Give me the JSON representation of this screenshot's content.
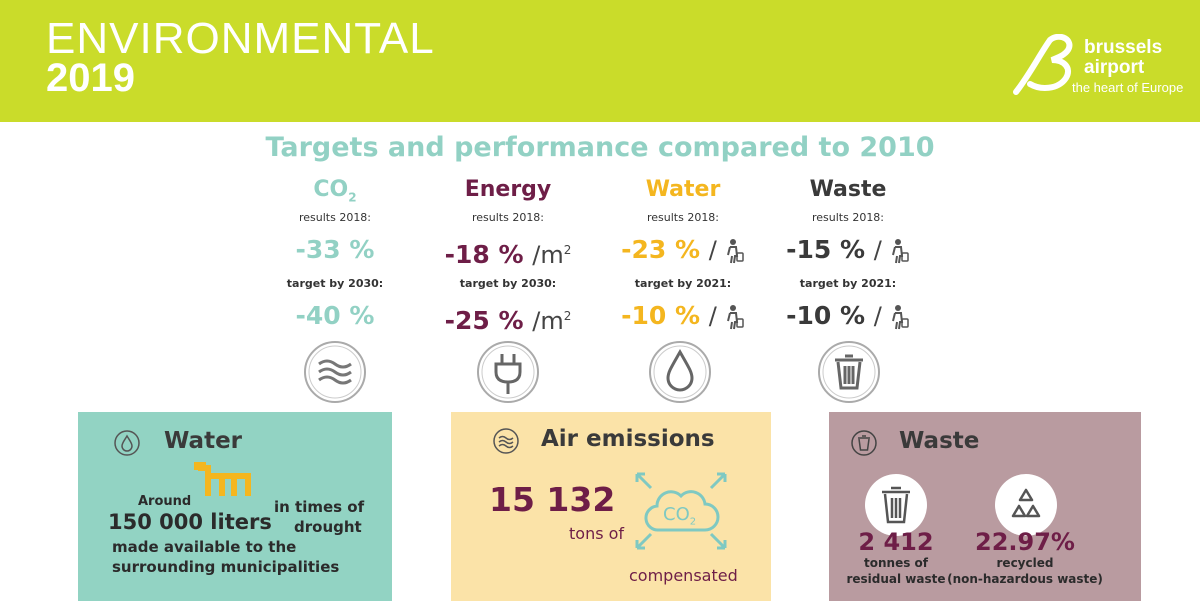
{
  "header": {
    "title_line1": "ENVIRONMENTAL",
    "title_line2": "2019",
    "logo_word1": "brussels",
    "logo_word2": "airport",
    "logo_tagline": "the heart of Europe"
  },
  "section_title": "Targets and performance compared to 2010",
  "columns": [
    {
      "name": "CO",
      "name_sub": "2",
      "color": "#92d1c4",
      "results_label": "results 2018:",
      "result": "-33 %",
      "target_label": "target by  2030:",
      "target": "-40 %",
      "unit": "",
      "icon": "air-waves-icon"
    },
    {
      "name": "Energy",
      "color": "#6e1e47",
      "results_label": "results 2018:",
      "result": "-18 %",
      "target_label": "target by  2030:",
      "target": "-25 %",
      "unit": "/m",
      "unit_sup": "2",
      "icon": "plug-icon"
    },
    {
      "name": "Water",
      "color": "#f4b61f",
      "results_label": "results 2018:",
      "result": "-23 %",
      "target_label": "target by  2021:",
      "target": "-10 %",
      "unit": "/",
      "icon": "water-drop-icon"
    },
    {
      "name": "Waste",
      "color": "#3a3a3a",
      "results_label": "results 2018:",
      "result": "-15 %",
      "target_label": "target by  2021:",
      "target": "-10 %",
      "unit": "/",
      "icon": "trash-bin-icon"
    }
  ],
  "cards": {
    "water": {
      "title": "Water",
      "around": "Around",
      "amount": "150 000 liters",
      "times_of": "in times of",
      "drought": "drought",
      "made_available": "made available to the",
      "municipalities": "surrounding municipalities",
      "color": "#92d3c3"
    },
    "air": {
      "title": "Air emissions",
      "amount": "15 132",
      "tons_of": "tons of",
      "co2": "CO",
      "co2_sub": "2",
      "compensated": "compensated",
      "color": "#fbe3a8"
    },
    "waste": {
      "title": "Waste",
      "residual_value": "2 412",
      "residual_label1": "tonnes of",
      "residual_label2": "residual waste",
      "recycled_value": "22.97%",
      "recycled_label1": "recycled",
      "recycled_label2": "(non-hazardous waste)",
      "color": "#b99ba0"
    }
  }
}
